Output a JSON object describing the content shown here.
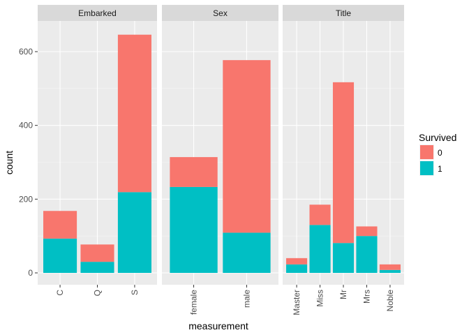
{
  "chart_data": {
    "type": "bar",
    "stacked": true,
    "xlabel": "measurement",
    "ylabel": "count",
    "ylim": [
      0,
      660
    ],
    "y_ticks": [
      0,
      200,
      400,
      600
    ],
    "grid": true,
    "legend": {
      "title": "Survived",
      "placement": "right",
      "entries": [
        {
          "label": "0",
          "color": "#F8766D"
        },
        {
          "label": "1",
          "color": "#00BFC4"
        }
      ]
    },
    "facets": [
      {
        "title": "Embarked",
        "categories": [
          "C",
          "Q",
          "S"
        ],
        "series": [
          {
            "name": "1",
            "values": [
              93,
              30,
              219
            ]
          },
          {
            "name": "0",
            "values": [
              75,
              47,
              427
            ]
          }
        ]
      },
      {
        "title": "Sex",
        "categories": [
          "female",
          "male"
        ],
        "series": [
          {
            "name": "1",
            "values": [
              233,
              109
            ]
          },
          {
            "name": "0",
            "values": [
              81,
              468
            ]
          }
        ]
      },
      {
        "title": "Title",
        "categories": [
          "Master",
          "Miss",
          "Mr",
          "Mrs",
          "Noble"
        ],
        "series": [
          {
            "name": "1",
            "values": [
              23,
              130,
              81,
              100,
              8
            ]
          },
          {
            "name": "0",
            "values": [
              17,
              55,
              436,
              26,
              15
            ]
          }
        ]
      }
    ]
  }
}
